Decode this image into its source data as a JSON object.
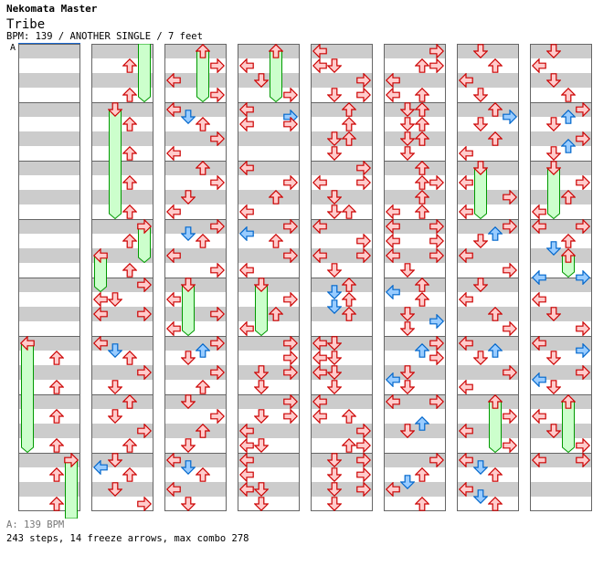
{
  "header": {
    "title": "Nekomata Master",
    "song": "Tribe",
    "info": "BPM: 139 / ANOTHER SINGLE / 7 feet",
    "marker": "A"
  },
  "footer": {
    "bpm": "A: 139 BPM",
    "stats": "243 steps, 14 freeze arrows, max combo 278"
  },
  "colors": {
    "quarter_fill": "#ffcccc",
    "quarter_stroke": "#cc0000",
    "eighth_fill": "#99ccff",
    "eighth_stroke": "#0066cc",
    "freeze_fill": "#ccffcc",
    "freeze_stroke": "#009900",
    "stripe": "#cccccc"
  },
  "chart": {
    "columns": [
      {
        "measures": [
          "",
          "",
          "",
          "",
          "",
          "U1 U3",
          "U1 U3",
          "U1 U3"
        ],
        "freezes": [
          [
            "L",
            20,
            27,
            true,
            true
          ],
          [
            "R",
            28,
            31.5,
            true,
            false
          ]
        ]
      },
      {
        "measures": [
          "U1 U3",
          "U1 U3",
          "U1 U3",
          "U1 U3",
          "R0 L1 D1 L2 R2",
          "L0 D0.5 U1 R2 D3",
          "U0 D1 R2 U3",
          "D0 L0.5 U1 D2 R3"
        ],
        "freezes": [
          [
            "R",
            0,
            3,
            false,
            true
          ],
          [
            "D",
            4,
            11,
            true,
            true
          ],
          [
            "R",
            12,
            14,
            true,
            true
          ],
          [
            "L",
            14,
            16,
            true,
            true
          ]
        ]
      },
      {
        "measures": [
          "R1 L2 R3",
          "L0 D0.5 U1 R2 L3",
          "U0 R1 D2 L3",
          "R0 D0.5 U1 L2 R3",
          "L1 R2 L3",
          "R0 U0.5 D1 R2 U3",
          "D0 R1 U2 D3",
          "L0 D0.5 U1 L2 D3"
        ],
        "freezes": [
          [
            "U",
            0,
            3,
            true,
            true
          ],
          [
            "D",
            16,
            19,
            true,
            true
          ]
        ]
      },
      {
        "measures": [
          "L1 D2 R3",
          "L0 R0.5 L1 R1",
          "L0 R1 U2 L3",
          "R0 L0.5 U1 R2 L3",
          "R1 U2 L3",
          "R0 R1 D2 R2 D3",
          "R0 D1 R1 L2 L3 D3",
          "L0 L1 L2 D2 D3"
        ],
        "freezes": [
          [
            "U",
            0,
            3,
            true,
            true
          ],
          [
            "D",
            16,
            19,
            true,
            true
          ]
        ]
      },
      {
        "measures": [
          "L0 L1 D1 R2 D3 R3",
          "U0 U1 D2 U2 D3",
          "R0 L1 R1 D2 D3 U3",
          "L0 R1 L2 R2 D3",
          "U0 D0.5 U1 D1.5 U2",
          "L0 D0 L1 D1 L2 D2 D3",
          "L0 L1 U1 R2 U3 R3",
          "D0 R0 D1 R1 D2 R2 D3"
        ],
        "freezes": []
      },
      {
        "measures": [
          "R0 U1 R1 L2 L3 U3",
          "D0 U0 D1 U1 D2 U2 D3",
          "U0 U1 R1 U2 L3 U3",
          "L0 R0 L1 R1 L2 R2 D3",
          "U0 L0.5 U1 D2 R2.5 D3",
          "R0 U0.5 R1 D2 L2.5 D3",
          "L0 R0 U1.5 D2",
          "R0 U1 D1.5 L2 U3"
        ],
        "freezes": []
      },
      {
        "measures": [
          "D0 U1 L2 D3",
          "U0 R0.5 D1 U2 L3",
          "L1 R2 L3",
          "R0 U0.5 D1 L2 R3",
          "D0 L1 U2 R3",
          "L0 U0.5 D1 R2 L3",
          "R1 L2 R3",
          "L0 D0.5 U1 L2 D2.5 U3"
        ],
        "freezes": [
          [
            "D",
            8,
            11,
            true,
            true
          ],
          [
            "U",
            24,
            27,
            true,
            true
          ]
        ]
      },
      {
        "measures": [
          "D0 L1 D2 U3",
          "R0 U0.5 D1 R2 U2.5 D3",
          "R1 U2 L3",
          "L0 R0 U1 D1.5 L3.5 R3.5",
          "L1 D2 R3",
          "L0 R0.5 D1 R2 L2.5 D3",
          "L1 D2 R3",
          "L0 R0"
        ],
        "freezes": [
          [
            "D",
            8,
            11,
            true,
            true
          ],
          [
            "U",
            14,
            15,
            true,
            true
          ],
          [
            "U",
            24,
            27,
            true,
            true
          ]
        ]
      }
    ]
  }
}
